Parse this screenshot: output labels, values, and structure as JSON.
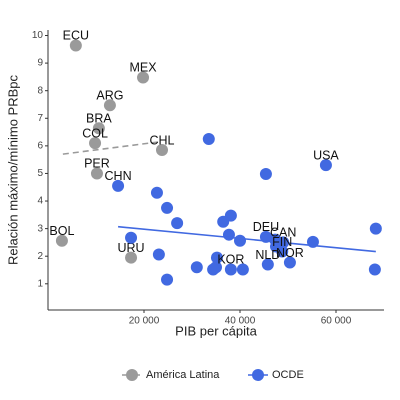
{
  "chart_data": {
    "type": "scatter",
    "xlabel": "PIB per cápita",
    "ylabel": "Relación máximo/mínimo PRBpc",
    "xlim": [
      0,
      70000
    ],
    "ylim": [
      0.05,
      10.2
    ],
    "xticks": [
      {
        "value": 20000,
        "label": "20 000"
      },
      {
        "value": 40000,
        "label": "40 000"
      },
      {
        "value": 60000,
        "label": "60 000"
      }
    ],
    "yticks": [
      1,
      2,
      3,
      4,
      5,
      6,
      7,
      8,
      9,
      10
    ],
    "legend": "bottom",
    "series": [
      {
        "name": "América Latina",
        "color": "#9a9a9a",
        "line_style": "dashed",
        "x": [
          5800,
          19800,
          12900,
          10600,
          9800,
          10200,
          23750,
          2900,
          17300
        ],
        "values": [
          9.64,
          8.48,
          7.47,
          6.64,
          6.1,
          5.0,
          5.85,
          2.56,
          1.95
        ],
        "labels": [
          "ECU",
          "MEX",
          "ARG",
          "BRA",
          "COL",
          "PER",
          "CHL",
          "BOL",
          "URU"
        ],
        "trend": {
          "x": [
            3100,
            22900
          ],
          "values": [
            5.7,
            6.14
          ]
        }
      },
      {
        "name": "OCDE",
        "color": "#4169e1",
        "line_style": "solid",
        "x": [
          33500,
          45400,
          57900,
          14600,
          22700,
          24800,
          26900,
          17300,
          23100,
          24800,
          31000,
          35200,
          35000,
          34400,
          36500,
          38100,
          37700,
          40000,
          38100,
          40600,
          45400,
          47300,
          49000,
          47500,
          48800,
          45800,
          50400,
          55200,
          68300,
          68100
        ],
        "values": [
          6.25,
          4.98,
          5.3,
          4.55,
          4.3,
          3.75,
          3.2,
          2.67,
          2.06,
          1.15,
          1.6,
          1.95,
          1.6,
          1.52,
          3.25,
          3.47,
          2.78,
          2.56,
          1.52,
          1.52,
          2.7,
          2.6,
          2.5,
          2.35,
          2.17,
          1.7,
          1.77,
          2.52,
          3.0,
          1.52
        ],
        "labels": [
          null,
          null,
          "USA",
          "CHN",
          null,
          null,
          null,
          null,
          null,
          null,
          null,
          null,
          null,
          null,
          null,
          null,
          null,
          null,
          "KOR",
          null,
          "DEU",
          null,
          "CAN",
          null,
          "FIN",
          "NLD",
          "NOR",
          null,
          null,
          null
        ],
        "trend": {
          "x": [
            14600,
            68300
          ],
          "values": [
            3.07,
            2.17
          ]
        }
      }
    ]
  }
}
